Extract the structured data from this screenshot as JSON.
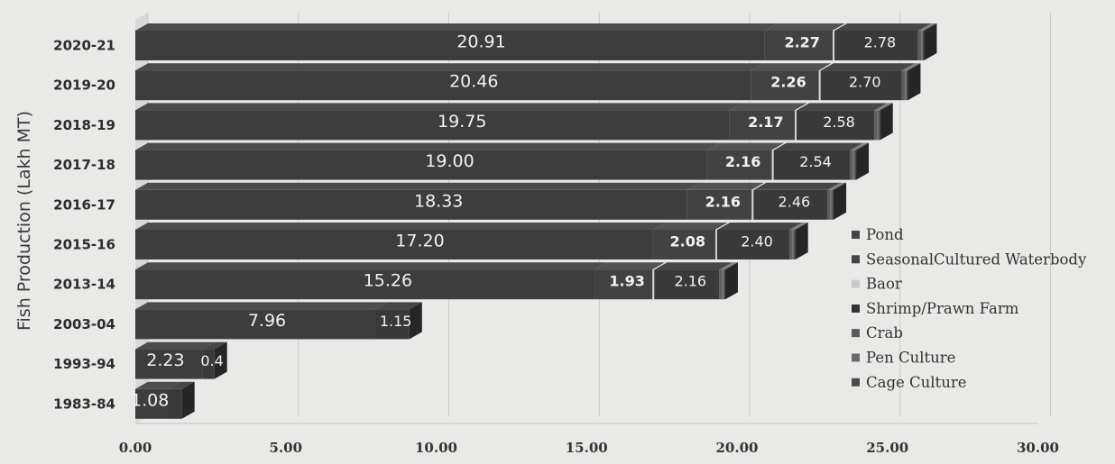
{
  "chart_data": {
    "type": "bar",
    "orientation": "horizontal",
    "stacked": true,
    "ylabel": "Fish Production (Lakh MT)",
    "xlim": [
      0,
      30
    ],
    "x_ticks": [
      "0.00",
      "5.00",
      "10.00",
      "15.00",
      "20.00",
      "25.00",
      "30.00"
    ],
    "grid": true,
    "legend_position": "right",
    "categories": [
      "1983-84",
      "1993-94",
      "2003-04",
      "2013-14",
      "2015-16",
      "2016-17",
      "2017-18",
      "2018-19",
      "2019-20",
      "2020-21"
    ],
    "series": [
      {
        "name": "Pond",
        "values": [
          1.08,
          2.23,
          7.96,
          15.26,
          17.2,
          18.33,
          19.0,
          19.75,
          20.46,
          20.91
        ],
        "labels": [
          "1.08",
          "2.23",
          "7.96",
          "15.26",
          "17.20",
          "18.33",
          "19.00",
          "19.75",
          "20.46",
          "20.91"
        ],
        "color": "#3d3d3d"
      },
      {
        "name": "Seasonal Cultured Waterbody",
        "values": [
          0,
          0,
          0,
          1.93,
          2.08,
          2.16,
          2.16,
          2.17,
          2.26,
          2.27
        ],
        "labels": [
          "",
          "",
          "",
          "1.93",
          "2.08",
          "2.16",
          "2.16",
          "2.17",
          "2.26",
          "2.27"
        ],
        "color": "#424242"
      },
      {
        "name": "Baor",
        "values": [
          0,
          0,
          0,
          0.06,
          0.06,
          0.06,
          0.06,
          0.06,
          0.06,
          0.06
        ],
        "labels": [
          "",
          "",
          "",
          "",
          "",
          "",
          "",
          "",
          "",
          ""
        ],
        "color": "#d2d2d2"
      },
      {
        "name": "Shrimp/Prawn Farm",
        "values": [
          0.47,
          0.4,
          1.15,
          2.16,
          2.4,
          2.46,
          2.54,
          2.58,
          2.7,
          2.78
        ],
        "labels": [
          "",
          "0.4",
          "1.15",
          "2.16",
          "2.40",
          "2.46",
          "2.54",
          "2.58",
          "2.70",
          "2.78"
        ],
        "color": "#393939"
      },
      {
        "name": "Crab",
        "values": [
          0,
          0,
          0,
          0.1,
          0.1,
          0.1,
          0.1,
          0.1,
          0.1,
          0.1
        ],
        "labels": [
          "",
          "",
          "",
          "",
          "",
          "",
          "",
          "",
          "",
          ""
        ],
        "color": "#5e5e5e"
      },
      {
        "name": "Pen Culture",
        "values": [
          0,
          0,
          0,
          0.05,
          0.05,
          0.05,
          0.05,
          0.05,
          0.05,
          0.05
        ],
        "labels": [
          "",
          "",
          "",
          "",
          "",
          "",
          "",
          "",
          "",
          ""
        ],
        "color": "#6e6e6e"
      },
      {
        "name": "Cage Culture",
        "values": [
          0,
          0,
          0,
          0.05,
          0.05,
          0.05,
          0.05,
          0.05,
          0.05,
          0.05
        ],
        "labels": [
          "",
          "",
          "",
          "",
          "",
          "",
          "",
          "",
          "",
          ""
        ],
        "color": "#4a4a4a"
      }
    ],
    "legend": [
      {
        "name": "Pond",
        "label": "Pond",
        "color": "#444444"
      },
      {
        "name": "Seasonal Cultured Waterbody",
        "label": "SeasonalCultured Waterbody",
        "color": "#444444"
      },
      {
        "name": "Baor",
        "label": "Baor",
        "color": "#c8c8c8"
      },
      {
        "name": "Shrimp/Prawn Farm",
        "label": "Shrimp/Prawn Farm",
        "color": "#333333"
      },
      {
        "name": "Crab",
        "label": "Crab",
        "color": "#5a5a5a"
      },
      {
        "name": "Pen Culture",
        "label": "Pen Culture",
        "color": "#6a6a6a"
      },
      {
        "name": "Cage Culture",
        "label": "Cage Culture",
        "color": "#4a4a4a"
      }
    ]
  }
}
